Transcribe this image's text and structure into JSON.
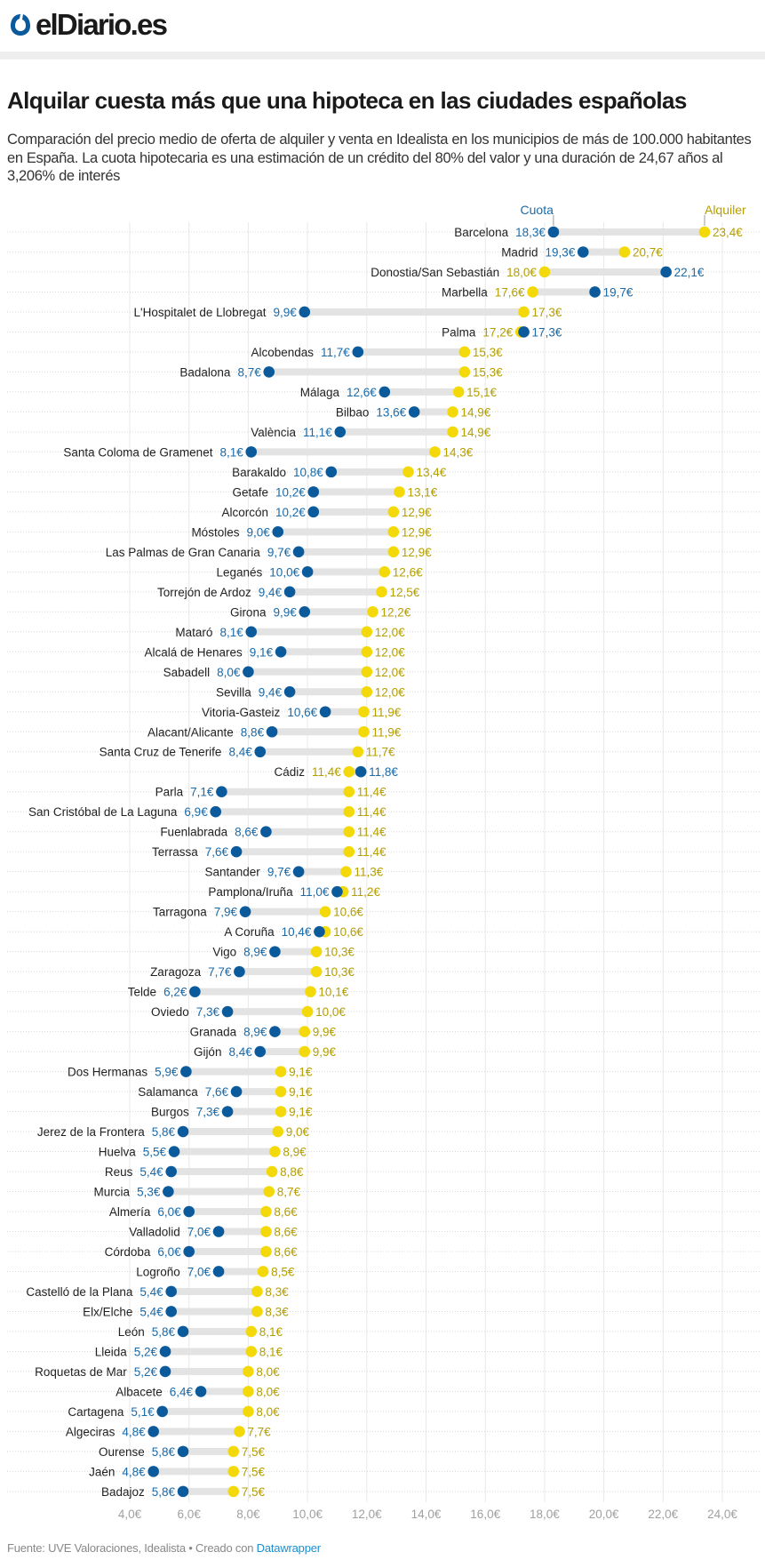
{
  "header": {
    "logo": "elDiario.es"
  },
  "title": "Alquilar cuesta más que una hipoteca en las ciudades españolas",
  "subtitle": "Comparación del precio medio de oferta de alquiler y venta en Idealista en los municipios de más de 100.000 habitantes en España. La cuota hipotecaria es una estimación de un crédito del 80% del valor y una duración de 24,67 años al 3,206% de interés",
  "footer": {
    "source": "Fuente: UVE Valoraciones, Idealista • Creado con ",
    "link": "Datawrapper"
  },
  "colors": {
    "cuota": "#0b5a9c",
    "alquiler": "#f3d90a",
    "cuota_text": "#1b6aa8",
    "alquiler_text": "#b59e00",
    "range_bar": "#e3e3e3"
  },
  "chart_data": {
    "type": "range-dot",
    "unit": "€",
    "xlim": [
      4,
      24
    ],
    "xticks": [
      "4,0€",
      "6,0€",
      "8,0€",
      "10,0€",
      "12,0€",
      "14,0€",
      "16,0€",
      "18,0€",
      "20,0€",
      "22,0€",
      "24,0€"
    ],
    "grid": true,
    "legend": {
      "cuota": "Cuota",
      "alquiler": "Alquiler"
    },
    "rows": [
      {
        "city": "Barcelona",
        "cuota": 18.3,
        "alquiler": 23.4
      },
      {
        "city": "Madrid",
        "cuota": 19.3,
        "alquiler": 20.7
      },
      {
        "city": "Donostia/San Sebastián",
        "cuota": 22.1,
        "alquiler": 18.0
      },
      {
        "city": "Marbella",
        "cuota": 19.7,
        "alquiler": 17.6
      },
      {
        "city": "L'Hospitalet de Llobregat",
        "cuota": 9.9,
        "alquiler": 17.3
      },
      {
        "city": "Palma",
        "cuota": 17.3,
        "alquiler": 17.2
      },
      {
        "city": "Alcobendas",
        "cuota": 11.7,
        "alquiler": 15.3
      },
      {
        "city": "Badalona",
        "cuota": 8.7,
        "alquiler": 15.3
      },
      {
        "city": "Málaga",
        "cuota": 12.6,
        "alquiler": 15.1
      },
      {
        "city": "Bilbao",
        "cuota": 13.6,
        "alquiler": 14.9
      },
      {
        "city": "València",
        "cuota": 11.1,
        "alquiler": 14.9
      },
      {
        "city": "Santa Coloma de Gramenet",
        "cuota": 8.1,
        "alquiler": 14.3
      },
      {
        "city": "Barakaldo",
        "cuota": 10.8,
        "alquiler": 13.4
      },
      {
        "city": "Getafe",
        "cuota": 10.2,
        "alquiler": 13.1
      },
      {
        "city": "Alcorcón",
        "cuota": 10.2,
        "alquiler": 12.9
      },
      {
        "city": "Móstoles",
        "cuota": 9.0,
        "alquiler": 12.9
      },
      {
        "city": "Las Palmas de Gran Canaria",
        "cuota": 9.7,
        "alquiler": 12.9
      },
      {
        "city": "Leganés",
        "cuota": 10.0,
        "alquiler": 12.6
      },
      {
        "city": "Torrejón de Ardoz",
        "cuota": 9.4,
        "alquiler": 12.5
      },
      {
        "city": "Girona",
        "cuota": 9.9,
        "alquiler": 12.2
      },
      {
        "city": "Mataró",
        "cuota": 8.1,
        "alquiler": 12.0
      },
      {
        "city": "Alcalá de Henares",
        "cuota": 9.1,
        "alquiler": 12.0
      },
      {
        "city": "Sabadell",
        "cuota": 8.0,
        "alquiler": 12.0
      },
      {
        "city": "Sevilla",
        "cuota": 9.4,
        "alquiler": 12.0
      },
      {
        "city": "Vitoria-Gasteiz",
        "cuota": 10.6,
        "alquiler": 11.9
      },
      {
        "city": "Alacant/Alicante",
        "cuota": 8.8,
        "alquiler": 11.9
      },
      {
        "city": "Santa Cruz de Tenerife",
        "cuota": 8.4,
        "alquiler": 11.7
      },
      {
        "city": "Cádiz",
        "cuota": 11.8,
        "alquiler": 11.4
      },
      {
        "city": "Parla",
        "cuota": 7.1,
        "alquiler": 11.4
      },
      {
        "city": "San Cristóbal de La Laguna",
        "cuota": 6.9,
        "alquiler": 11.4
      },
      {
        "city": "Fuenlabrada",
        "cuota": 8.6,
        "alquiler": 11.4
      },
      {
        "city": "Terrassa",
        "cuota": 7.6,
        "alquiler": 11.4
      },
      {
        "city": "Santander",
        "cuota": 9.7,
        "alquiler": 11.3
      },
      {
        "city": "Pamplona/Iruña",
        "cuota": 11.0,
        "alquiler": 11.2
      },
      {
        "city": "Tarragona",
        "cuota": 7.9,
        "alquiler": 10.6
      },
      {
        "city": "A Coruña",
        "cuota": 10.4,
        "alquiler": 10.6
      },
      {
        "city": "Vigo",
        "cuota": 8.9,
        "alquiler": 10.3
      },
      {
        "city": "Zaragoza",
        "cuota": 7.7,
        "alquiler": 10.3
      },
      {
        "city": "Telde",
        "cuota": 6.2,
        "alquiler": 10.1
      },
      {
        "city": "Oviedo",
        "cuota": 7.3,
        "alquiler": 10.0
      },
      {
        "city": "Granada",
        "cuota": 8.9,
        "alquiler": 9.9
      },
      {
        "city": "Gijón",
        "cuota": 8.4,
        "alquiler": 9.9
      },
      {
        "city": "Dos Hermanas",
        "cuota": 5.9,
        "alquiler": 9.1
      },
      {
        "city": "Salamanca",
        "cuota": 7.6,
        "alquiler": 9.1
      },
      {
        "city": "Burgos",
        "cuota": 7.3,
        "alquiler": 9.1
      },
      {
        "city": "Jerez de la Frontera",
        "cuota": 5.8,
        "alquiler": 9.0
      },
      {
        "city": "Huelva",
        "cuota": 5.5,
        "alquiler": 8.9
      },
      {
        "city": "Reus",
        "cuota": 5.4,
        "alquiler": 8.8
      },
      {
        "city": "Murcia",
        "cuota": 5.3,
        "alquiler": 8.7
      },
      {
        "city": "Almería",
        "cuota": 6.0,
        "alquiler": 8.6
      },
      {
        "city": "Valladolid",
        "cuota": 7.0,
        "alquiler": 8.6
      },
      {
        "city": "Córdoba",
        "cuota": 6.0,
        "alquiler": 8.6
      },
      {
        "city": "Logroño",
        "cuota": 7.0,
        "alquiler": 8.5
      },
      {
        "city": "Castelló de la Plana",
        "cuota": 5.4,
        "alquiler": 8.3
      },
      {
        "city": "Elx/Elche",
        "cuota": 5.4,
        "alquiler": 8.3
      },
      {
        "city": "León",
        "cuota": 5.8,
        "alquiler": 8.1
      },
      {
        "city": "Lleida",
        "cuota": 5.2,
        "alquiler": 8.1
      },
      {
        "city": "Roquetas de Mar",
        "cuota": 5.2,
        "alquiler": 8.0
      },
      {
        "city": "Albacete",
        "cuota": 6.4,
        "alquiler": 8.0
      },
      {
        "city": "Cartagena",
        "cuota": 5.1,
        "alquiler": 8.0
      },
      {
        "city": "Algeciras",
        "cuota": 4.8,
        "alquiler": 7.7
      },
      {
        "city": "Ourense",
        "cuota": 5.8,
        "alquiler": 7.5
      },
      {
        "city": "Jaén",
        "cuota": 4.8,
        "alquiler": 7.5
      },
      {
        "city": "Badajoz",
        "cuota": 5.8,
        "alquiler": 7.5
      }
    ]
  }
}
